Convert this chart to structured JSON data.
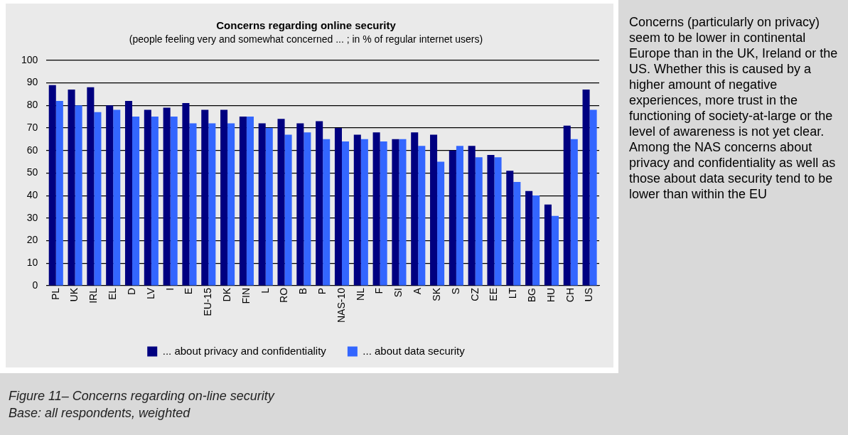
{
  "chart_data": {
    "type": "bar",
    "title": "Concerns regarding online security",
    "subtitle": "(people feeling very and somewhat concerned ... ; in % of regular internet users)",
    "categories": [
      "PL",
      "UK",
      "IRL",
      "EL",
      "D",
      "LV",
      "I",
      "E",
      "EU-15",
      "DK",
      "FIN",
      "L",
      "RO",
      "B",
      "P",
      "NAS-10",
      "NL",
      "F",
      "SI",
      "A",
      "SK",
      "S",
      "CZ",
      "EE",
      "LT",
      "BG",
      "HU",
      "CH",
      "US"
    ],
    "series": [
      {
        "name": "... about privacy and confidentiality",
        "color": "#000080",
        "values": [
          89,
          87,
          88,
          80,
          82,
          78,
          79,
          81,
          78,
          78,
          75,
          72,
          74,
          72,
          73,
          70,
          67,
          68,
          65,
          68,
          67,
          60,
          62,
          58,
          51,
          42,
          36,
          71,
          87
        ]
      },
      {
        "name": "... about data security",
        "color": "#3366ff",
        "values": [
          82,
          80,
          77,
          78,
          75,
          75,
          75,
          72,
          72,
          72,
          75,
          70,
          67,
          68,
          65,
          64,
          65,
          64,
          65,
          62,
          55,
          62,
          57,
          57,
          46,
          40,
          31,
          65,
          78
        ]
      }
    ],
    "ylim": [
      0,
      100
    ],
    "yticks": [
      0,
      10,
      20,
      30,
      40,
      50,
      60,
      70,
      80,
      90,
      100
    ],
    "grid": "y",
    "legend": "bottom",
    "annotations": [
      "Concerns (particularly on privacy) seem to be lower in continental Europe than in the UK, Ireland or the US. Whether this is caused by a higher amount of negative experiences, more trust in the functioning of society-at-large or the level of awareness is not yet clear. Among the NAS concerns about privacy and confidentiality as well as those about data security tend to be lower than within the EU",
      "Figure 11– Concerns regarding on-line security",
      "Base: all respondents, weighted"
    ]
  }
}
